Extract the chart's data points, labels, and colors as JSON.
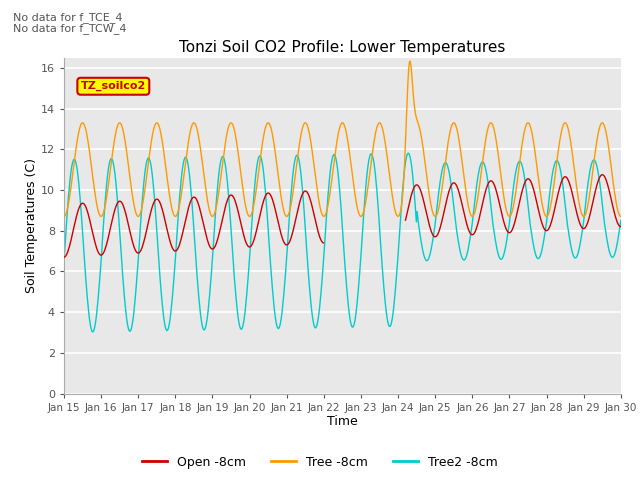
{
  "title": "Tonzi Soil CO2 Profile: Lower Temperatures",
  "xlabel": "Time",
  "ylabel": "Soil Temperatures (C)",
  "ylim": [
    0,
    16.5
  ],
  "yticks": [
    0,
    2,
    4,
    6,
    8,
    10,
    12,
    14,
    16
  ],
  "xtick_labels": [
    "Jan 15",
    "Jan 16",
    "Jan 17",
    "Jan 18",
    "Jan 19",
    "Jan 20",
    "Jan 21",
    "Jan 22",
    "Jan 23",
    "Jan 24",
    "Jan 25",
    "Jan 26",
    "Jan 27",
    "Jan 28",
    "Jan 29",
    "Jan 30"
  ],
  "note1": "No data for f_TCE_4",
  "note2": "No data for f_TCW_4",
  "legend_label": "TZ_soilco2",
  "open_color": "#cc0000",
  "tree_color": "#ff9900",
  "tree2_color": "#00cccc",
  "bg_color": "#e8e8e8",
  "legend_bg": "#ffff00",
  "legend_border": "#cc0000",
  "legend_entries": [
    "Open -8cm",
    "Tree -8cm",
    "Tree2 -8cm"
  ]
}
